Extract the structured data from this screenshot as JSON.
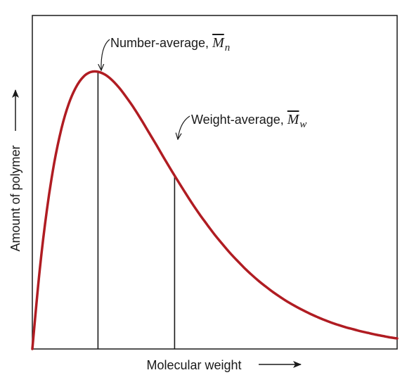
{
  "chart_data": {
    "type": "line",
    "title": "",
    "xlabel": "Molecular weight",
    "ylabel": "Amount of polymer",
    "xlim": [
      0,
      10
    ],
    "ylim": [
      0,
      1
    ],
    "grid": false,
    "legend": "none",
    "curve_color": "#b01c22",
    "series": [
      {
        "x": [
          0,
          0.2,
          0.4,
          0.6,
          0.8,
          1.0,
          1.2,
          1.4,
          1.6,
          1.8,
          2.0,
          2.2,
          2.4,
          2.6,
          2.8,
          3.0,
          3.2,
          3.4,
          3.6,
          3.8,
          4.0,
          4.2,
          4.4,
          4.6,
          4.8,
          5.0,
          5.2,
          5.4,
          5.6,
          5.8,
          6.0,
          6.2,
          6.4,
          6.6,
          6.8,
          7.0,
          7.2,
          7.4,
          7.6,
          7.8,
          8.0,
          8.2,
          8.4,
          8.6,
          8.8,
          9.0,
          9.2,
          9.4,
          9.6,
          9.8,
          10.0
        ],
        "y": [
          0,
          0.282,
          0.503,
          0.671,
          0.796,
          0.885,
          0.945,
          0.982,
          0.999,
          1.0,
          0.989,
          0.968,
          0.939,
          0.904,
          0.866,
          0.824,
          0.78,
          0.736,
          0.691,
          0.647,
          0.604,
          0.562,
          0.521,
          0.483,
          0.447,
          0.412,
          0.38,
          0.349,
          0.321,
          0.294,
          0.269,
          0.246,
          0.225,
          0.205,
          0.187,
          0.17,
          0.155,
          0.141,
          0.128,
          0.116,
          0.105,
          0.095,
          0.086,
          0.078,
          0.071,
          0.064,
          0.058,
          0.052,
          0.047,
          0.042,
          0.038
        ]
      }
    ],
    "annotations": [
      {
        "name": "number-average",
        "label": "Number-average, ",
        "symbol": "M",
        "subscript": "n",
        "x": 1.8
      },
      {
        "name": "weight-average",
        "label": "Weight-average, ",
        "symbol": "M",
        "subscript": "w",
        "x": 3.9
      }
    ]
  }
}
